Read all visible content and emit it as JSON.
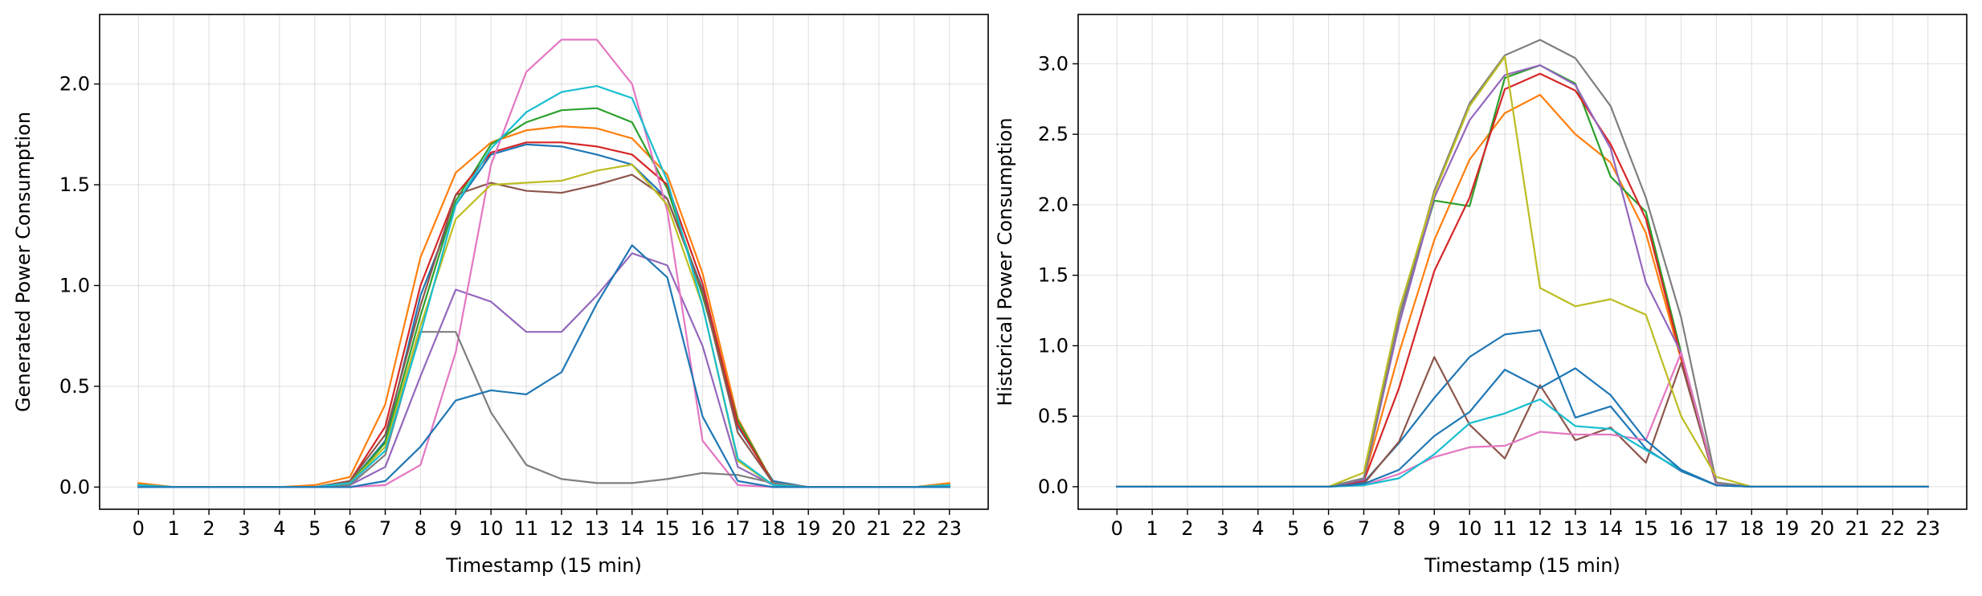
{
  "chart_data": [
    {
      "type": "line",
      "xlabel": "Timestamp (15 min)",
      "ylabel": "Generated Power Consumption",
      "title": "",
      "grid": true,
      "xlim": [
        -1.1,
        24.1
      ],
      "ylim": [
        -0.11,
        2.345
      ],
      "xticks": [
        0,
        1,
        2,
        3,
        4,
        5,
        6,
        7,
        8,
        9,
        10,
        11,
        12,
        13,
        14,
        15,
        16,
        17,
        18,
        19,
        20,
        21,
        22,
        23
      ],
      "yticks": [
        0.0,
        0.5,
        1.0,
        1.5,
        2.0
      ],
      "ytick_labels": [
        "0.0",
        "0.5",
        "1.0",
        "1.5",
        "2.0"
      ],
      "x": [
        0,
        1,
        2,
        3,
        4,
        5,
        6,
        7,
        8,
        9,
        10,
        11,
        12,
        13,
        14,
        15,
        16,
        17,
        18,
        19,
        20,
        21,
        22,
        23
      ],
      "series": [
        {
          "color": "#1f77b4",
          "values": [
            0.01,
            0,
            0,
            0,
            0,
            0,
            0.02,
            0.23,
            0.95,
            1.4,
            1.65,
            1.7,
            1.69,
            1.65,
            1.6,
            1.43,
            0.98,
            0.3,
            0.03,
            0,
            0,
            0,
            0,
            0.01
          ]
        },
        {
          "color": "#ff7f0e",
          "values": [
            0.02,
            0,
            0,
            0,
            0,
            0.01,
            0.05,
            0.41,
            1.14,
            1.56,
            1.71,
            1.77,
            1.79,
            1.78,
            1.73,
            1.55,
            1.06,
            0.34,
            0.02,
            0,
            0,
            0,
            0,
            0.02
          ]
        },
        {
          "color": "#2ca02c",
          "values": [
            0.01,
            0,
            0,
            0,
            0,
            0,
            0.02,
            0.22,
            0.85,
            1.42,
            1.7,
            1.81,
            1.87,
            1.88,
            1.81,
            1.48,
            0.95,
            0.33,
            0.02,
            0,
            0,
            0,
            0,
            0.01
          ]
        },
        {
          "color": "#d62728",
          "values": [
            0.01,
            0,
            0,
            0,
            0,
            0,
            0.03,
            0.3,
            1.0,
            1.45,
            1.66,
            1.71,
            1.71,
            1.69,
            1.65,
            1.5,
            1.01,
            0.31,
            0.02,
            0,
            0,
            0,
            0,
            0.01
          ]
        },
        {
          "color": "#9467bd",
          "values": [
            0.01,
            0,
            0,
            0,
            0,
            0,
            0.01,
            0.1,
            0.55,
            0.98,
            0.92,
            0.77,
            0.77,
            0.95,
            1.16,
            1.1,
            0.7,
            0.1,
            0.01,
            0,
            0,
            0,
            0,
            0
          ]
        },
        {
          "color": "#8c564b",
          "values": [
            0.01,
            0,
            0,
            0,
            0,
            0,
            0.03,
            0.26,
            0.9,
            1.45,
            1.51,
            1.47,
            1.46,
            1.5,
            1.55,
            1.43,
            0.97,
            0.27,
            0.02,
            0,
            0,
            0,
            0,
            0.01
          ]
        },
        {
          "color": "#e377c2",
          "values": [
            0,
            0,
            0,
            0,
            0,
            0,
            0,
            0.01,
            0.11,
            0.67,
            1.6,
            2.06,
            2.22,
            2.22,
            2.0,
            1.37,
            0.23,
            0.01,
            0,
            0,
            0,
            0,
            0,
            0
          ]
        },
        {
          "color": "#7f7f7f",
          "values": [
            0,
            0,
            0,
            0,
            0,
            0,
            0.01,
            0.16,
            0.77,
            0.77,
            0.37,
            0.11,
            0.04,
            0.02,
            0.02,
            0.04,
            0.07,
            0.06,
            0.02,
            0,
            0,
            0,
            0,
            0
          ]
        },
        {
          "color": "#bcbd22",
          "values": [
            0.01,
            0,
            0,
            0,
            0,
            0,
            0.02,
            0.2,
            0.8,
            1.33,
            1.5,
            1.51,
            1.52,
            1.57,
            1.6,
            1.4,
            0.9,
            0.13,
            0.01,
            0,
            0,
            0,
            0,
            0.01
          ]
        },
        {
          "color": "#17becf",
          "values": [
            0.01,
            0,
            0,
            0,
            0,
            0,
            0.02,
            0.18,
            0.76,
            1.4,
            1.68,
            1.86,
            1.96,
            1.99,
            1.93,
            1.52,
            0.9,
            0.14,
            0.01,
            0,
            0,
            0,
            0,
            0.01
          ]
        },
        {
          "color": "#1f77b4",
          "values": [
            0,
            0,
            0,
            0,
            0,
            0,
            0,
            0.03,
            0.2,
            0.43,
            0.48,
            0.46,
            0.57,
            0.91,
            1.2,
            1.04,
            0.35,
            0.03,
            0,
            0,
            0,
            0,
            0,
            0
          ]
        }
      ]
    },
    {
      "type": "line",
      "xlabel": "Timestamp (15 min)",
      "ylabel": "Historical Power Consumption",
      "title": "",
      "grid": true,
      "xlim": [
        -1.1,
        24.1
      ],
      "ylim": [
        -0.16,
        3.35
      ],
      "xticks": [
        0,
        1,
        2,
        3,
        4,
        5,
        6,
        7,
        8,
        9,
        10,
        11,
        12,
        13,
        14,
        15,
        16,
        17,
        18,
        19,
        20,
        21,
        22,
        23
      ],
      "yticks": [
        0.0,
        0.5,
        1.0,
        1.5,
        2.0,
        2.5,
        3.0
      ],
      "ytick_labels": [
        "0.0",
        "0.5",
        "1.0",
        "1.5",
        "2.0",
        "2.5",
        "3.0"
      ],
      "x": [
        0,
        1,
        2,
        3,
        4,
        5,
        6,
        7,
        8,
        9,
        10,
        11,
        12,
        13,
        14,
        15,
        16,
        17,
        18,
        19,
        20,
        21,
        22,
        23
      ],
      "series": [
        {
          "color": "#1f77b4",
          "values": [
            0,
            0,
            0,
            0,
            0,
            0,
            0,
            0.03,
            0.31,
            0.63,
            0.92,
            1.08,
            1.11,
            0.49,
            0.57,
            0.27,
            0.11,
            0.01,
            0,
            0,
            0,
            0,
            0,
            0
          ]
        },
        {
          "color": "#ff7f0e",
          "values": [
            0,
            0,
            0,
            0,
            0,
            0,
            0,
            0.05,
            0.95,
            1.75,
            2.32,
            2.65,
            2.78,
            2.5,
            2.3,
            1.8,
            0.9,
            0.02,
            0,
            0,
            0,
            0,
            0,
            0
          ]
        },
        {
          "color": "#2ca02c",
          "values": [
            0,
            0,
            0,
            0,
            0,
            0,
            0,
            0.06,
            1.2,
            2.03,
            1.99,
            2.9,
            2.99,
            2.86,
            2.2,
            1.95,
            0.95,
            0.03,
            0,
            0,
            0,
            0,
            0,
            0
          ]
        },
        {
          "color": "#d62728",
          "values": [
            0,
            0,
            0,
            0,
            0,
            0,
            0,
            0.04,
            0.7,
            1.53,
            2.05,
            2.82,
            2.93,
            2.81,
            2.43,
            1.9,
            0.92,
            0.02,
            0,
            0,
            0,
            0,
            0,
            0
          ]
        },
        {
          "color": "#9467bd",
          "values": [
            0,
            0,
            0,
            0,
            0,
            0,
            0,
            0.05,
            1.15,
            2.05,
            2.6,
            2.92,
            2.99,
            2.85,
            2.4,
            1.45,
            0.95,
            0.02,
            0,
            0,
            0,
            0,
            0,
            0
          ]
        },
        {
          "color": "#8c564b",
          "values": [
            0,
            0,
            0,
            0,
            0,
            0,
            0,
            0.02,
            0.32,
            0.92,
            0.44,
            0.2,
            0.72,
            0.33,
            0.42,
            0.17,
            0.88,
            0.01,
            0,
            0,
            0,
            0,
            0,
            0
          ]
        },
        {
          "color": "#e377c2",
          "values": [
            0,
            0,
            0,
            0,
            0,
            0,
            0,
            0.01,
            0.09,
            0.21,
            0.28,
            0.29,
            0.39,
            0.37,
            0.37,
            0.33,
            0.95,
            0.02,
            0,
            0,
            0,
            0,
            0,
            0
          ]
        },
        {
          "color": "#7f7f7f",
          "values": [
            0,
            0,
            0,
            0,
            0,
            0,
            0,
            0.06,
            1.2,
            2.1,
            2.72,
            3.06,
            3.17,
            3.04,
            2.7,
            2.05,
            1.2,
            0.03,
            0,
            0,
            0,
            0,
            0,
            0
          ]
        },
        {
          "color": "#bcbd22",
          "values": [
            0,
            0,
            0,
            0,
            0,
            0,
            0,
            0.1,
            1.25,
            2.08,
            2.7,
            3.05,
            1.41,
            1.28,
            1.33,
            1.22,
            0.5,
            0.07,
            0,
            0,
            0,
            0,
            0,
            0
          ]
        },
        {
          "color": "#17becf",
          "values": [
            0,
            0,
            0,
            0,
            0,
            0,
            0,
            0.01,
            0.06,
            0.23,
            0.45,
            0.52,
            0.62,
            0.43,
            0.41,
            0.26,
            0.12,
            0.01,
            0,
            0,
            0,
            0,
            0,
            0
          ]
        },
        {
          "color": "#1f77b4",
          "values": [
            0,
            0,
            0,
            0,
            0,
            0,
            0,
            0.02,
            0.12,
            0.36,
            0.53,
            0.83,
            0.7,
            0.84,
            0.65,
            0.33,
            0.12,
            0.01,
            0,
            0,
            0,
            0,
            0,
            0
          ]
        }
      ]
    }
  ]
}
